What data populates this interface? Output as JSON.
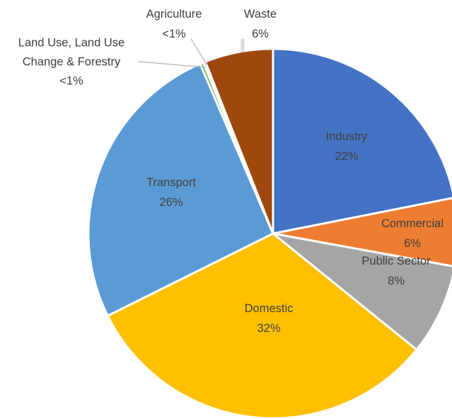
{
  "chart_data": {
    "type": "pie",
    "categories": [
      "Industry",
      "Commercial",
      "Public Sector",
      "Domestic",
      "Transport",
      "Land Use, Land Use Change & Forestry",
      "Agriculture",
      "Waste"
    ],
    "values": [
      22,
      6,
      8,
      32,
      26,
      0.3,
      0.2,
      6
    ],
    "value_labels": [
      "22%",
      "6%",
      "8%",
      "32%",
      "26%",
      "<1%",
      "<1%",
      "6%"
    ],
    "colors": [
      "#4472c4",
      "#ed7d31",
      "#a5a5a5",
      "#ffc000",
      "#5b9bd5",
      "#70ad47",
      "#264478",
      "#9e480e"
    ]
  }
}
